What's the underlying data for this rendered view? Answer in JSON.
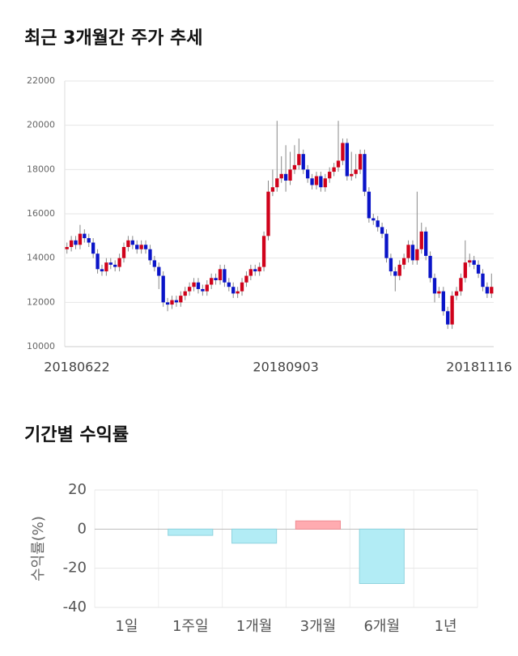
{
  "chart_data": [
    {
      "type": "candlestick",
      "title": "최근 3개월간 주가 추세",
      "categories": [
        "20180622",
        null,
        null,
        null,
        null,
        null,
        null,
        null,
        null,
        null,
        null,
        null,
        null,
        null,
        null,
        null,
        null,
        null,
        null,
        null,
        null,
        null,
        null,
        null,
        null,
        null,
        null,
        null,
        null,
        null,
        null,
        null,
        null,
        null,
        null,
        null,
        null,
        null,
        null,
        null,
        null,
        null,
        null,
        null,
        null,
        null,
        null,
        null,
        null,
        null,
        "20180903",
        null,
        null,
        null,
        null,
        null,
        null,
        null,
        null,
        null,
        null,
        null,
        null,
        null,
        null,
        null,
        null,
        null,
        null,
        null,
        null,
        null,
        null,
        null,
        null,
        null,
        null,
        null,
        null,
        null,
        null,
        null,
        null,
        null,
        null,
        null,
        null,
        null,
        null,
        null,
        null,
        null,
        null,
        null,
        null,
        null,
        null,
        "20181116"
      ],
      "open": [
        14400,
        14500,
        14800,
        14600,
        15100,
        14900,
        14700,
        14200,
        13500,
        13400,
        13800,
        13700,
        13600,
        14000,
        14500,
        14800,
        14600,
        14400,
        14600,
        14400,
        13900,
        13600,
        13200,
        12000,
        11900,
        12100,
        12000,
        12300,
        12500,
        12700,
        12900,
        12600,
        12500,
        12800,
        13100,
        13000,
        13500,
        12900,
        12700,
        12400,
        12500,
        12900,
        13200,
        13500,
        13400,
        13600,
        15000,
        17000,
        17200,
        17600,
        17800,
        17500,
        18000,
        18200,
        18700,
        18000,
        17600,
        17300,
        17700,
        17200,
        17600,
        17900,
        18100,
        18400,
        19200,
        17700,
        17800,
        18000,
        18700,
        17000,
        15800,
        15700,
        15400,
        15100,
        14000,
        13400,
        13200,
        13700,
        14000,
        14600,
        13900,
        14400,
        15200,
        14100,
        13100,
        12400,
        12500,
        11600,
        11000,
        12300,
        12500,
        13100,
        13800,
        13900,
        13700,
        13300,
        12700,
        12400
      ],
      "high": [
        14700,
        15000,
        15000,
        15500,
        15300,
        15100,
        14900,
        14400,
        13700,
        14000,
        14000,
        13900,
        14200,
        14700,
        15000,
        15000,
        14800,
        14800,
        14800,
        14600,
        14100,
        13800,
        13400,
        12200,
        12300,
        12300,
        12500,
        12700,
        12900,
        13100,
        13100,
        12800,
        13000,
        13300,
        13300,
        13700,
        13700,
        13100,
        12900,
        12700,
        13100,
        13400,
        13700,
        13700,
        13800,
        15200,
        17500,
        18000,
        20200,
        18600,
        19100,
        18800,
        19100,
        19400,
        18900,
        18200,
        17800,
        17900,
        17900,
        17800,
        18100,
        18300,
        20200,
        19400,
        19400,
        18800,
        18700,
        18900,
        18900,
        17200,
        16000,
        15900,
        15600,
        15300,
        14200,
        13600,
        13900,
        14200,
        14800,
        14800,
        17000,
        15600,
        15400,
        14300,
        13300,
        12700,
        12700,
        11800,
        12500,
        12700,
        13300,
        14800,
        14200,
        14100,
        13900,
        13500,
        12900,
        13300
      ],
      "low": [
        14200,
        14300,
        14400,
        14400,
        14700,
        14500,
        14000,
        13300,
        13200,
        13200,
        13500,
        13400,
        13400,
        13800,
        14300,
        14400,
        14200,
        14200,
        14200,
        13700,
        13400,
        12600,
        11800,
        11600,
        11700,
        11800,
        11800,
        12100,
        12300,
        12500,
        12400,
        12300,
        12300,
        12600,
        12800,
        12800,
        12700,
        12500,
        12200,
        12200,
        12300,
        12700,
        13000,
        13200,
        13200,
        13400,
        14800,
        16800,
        17000,
        17400,
        17000,
        17300,
        17800,
        18000,
        17800,
        17400,
        17100,
        17100,
        17000,
        17000,
        17400,
        17700,
        17900,
        18200,
        17500,
        17500,
        17600,
        17800,
        16800,
        15600,
        15500,
        15200,
        14900,
        13800,
        13200,
        12500,
        13000,
        13500,
        13800,
        13700,
        13700,
        14200,
        13900,
        12900,
        12000,
        12200,
        11400,
        10800,
        10800,
        12100,
        12300,
        12900,
        13600,
        13500,
        13100,
        12500,
        12200,
        12200
      ],
      "close": [
        14500,
        14800,
        14600,
        15100,
        14900,
        14700,
        14200,
        13500,
        13400,
        13800,
        13700,
        13600,
        14000,
        14500,
        14800,
        14600,
        14400,
        14600,
        14400,
        13900,
        13600,
        13200,
        12000,
        11900,
        12100,
        12000,
        12300,
        12500,
        12700,
        12900,
        12600,
        12500,
        12800,
        13100,
        13000,
        13500,
        12900,
        12700,
        12400,
        12500,
        12900,
        13200,
        13500,
        13400,
        13600,
        15000,
        17000,
        17200,
        17600,
        17800,
        17500,
        18000,
        18200,
        18700,
        18000,
        17600,
        17300,
        17700,
        17200,
        17600,
        17900,
        18100,
        18400,
        19200,
        17700,
        17800,
        18000,
        18700,
        17000,
        15800,
        15700,
        15400,
        15100,
        14000,
        13400,
        13200,
        13700,
        14000,
        14600,
        13900,
        14400,
        15200,
        14100,
        13100,
        12400,
        12500,
        11600,
        11000,
        12300,
        12500,
        13100,
        13800,
        13900,
        13700,
        13300,
        12700,
        12400,
        12700
      ],
      "up_color": "#d0021b",
      "down_color": "#0a14c8",
      "ylim": [
        10000,
        22000
      ],
      "yticks": [
        10000,
        12000,
        14000,
        16000,
        18000,
        20000,
        22000
      ],
      "grid": true
    },
    {
      "type": "bar",
      "title": "기간별 수익률",
      "y_label": "수익률(%)",
      "categories": [
        "1일",
        "1주일",
        "1개월",
        "3개월",
        "6개월",
        "1년"
      ],
      "values": [
        null,
        -3.2,
        -7.2,
        4.2,
        -27.8,
        null
      ],
      "positive_color": "#ffabb0",
      "negative_color": "#b2ecf5",
      "ylim": [
        -40,
        20
      ],
      "yticks": [
        20,
        0,
        -20,
        -40
      ],
      "grid": true
    }
  ]
}
